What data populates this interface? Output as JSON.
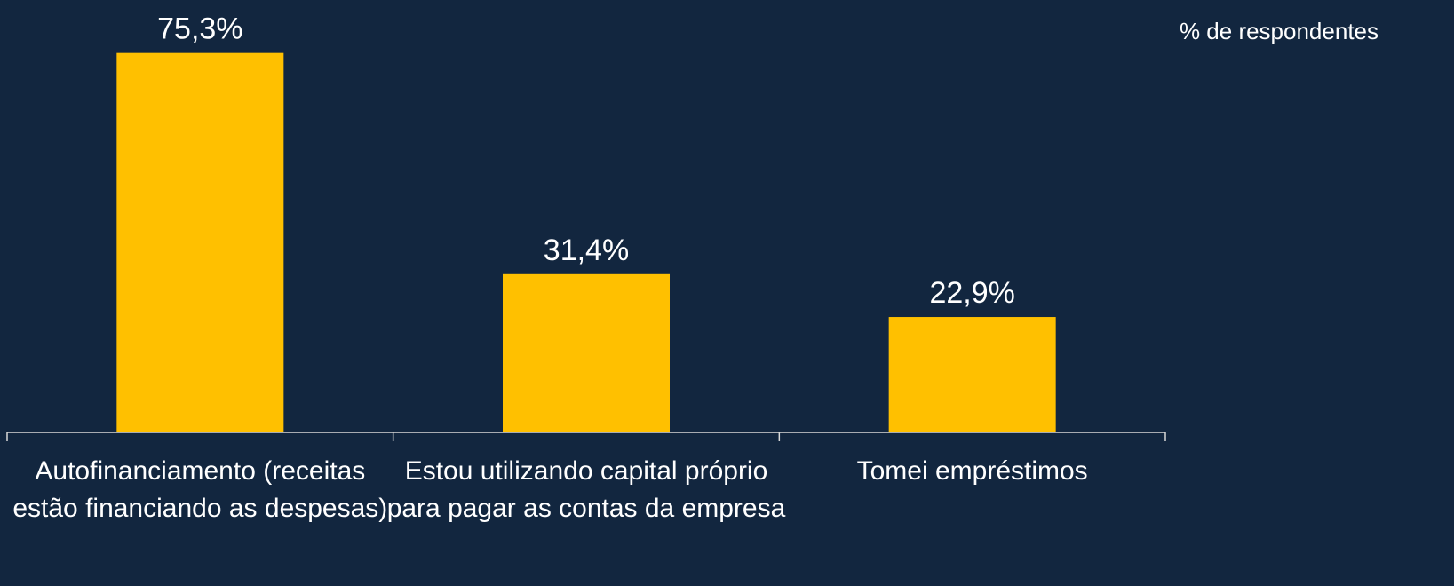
{
  "chart_data": {
    "type": "bar",
    "subtitle": "% de respondentes",
    "categories": [
      "Autofinanciamento (receitas estão financiando as despesas)",
      "Estou utilizando capital próprio para pagar as contas da empresa",
      "Tomei empréstimos"
    ],
    "values": [
      75.3,
      31.4,
      22.9
    ],
    "value_labels": [
      "75,3%",
      "31,4%",
      "22,9%"
    ],
    "color": "#ffc000",
    "ylim": [
      0,
      80
    ]
  }
}
